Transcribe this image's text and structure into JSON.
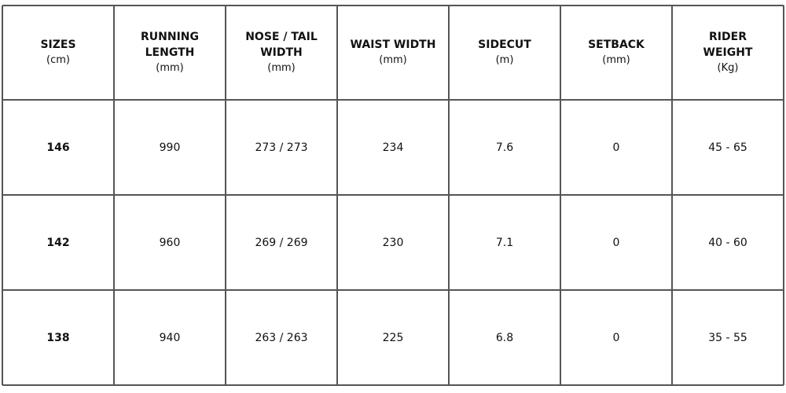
{
  "headers": [
    {
      "title": [
        "SIZES"
      ],
      "unit": "(cm)"
    },
    {
      "title": [
        "RUNNING",
        "LENGTH"
      ],
      "unit": "(mm)"
    },
    {
      "title": [
        "NOSE / TAIL",
        "WIDTH"
      ],
      "unit": "(mm)"
    },
    {
      "title": [
        "WAIST WIDTH"
      ],
      "unit": "(mm)"
    },
    {
      "title": [
        "SIDECUT"
      ],
      "unit": "(m)"
    },
    {
      "title": [
        "SETBACK"
      ],
      "unit": "(mm)"
    },
    {
      "title": [
        "RIDER",
        "WEIGHT"
      ],
      "unit": "(Kg)"
    }
  ],
  "rows": [
    [
      "146",
      "990",
      "273 / 273",
      "234",
      "7.6",
      "0",
      "45 - 65"
    ],
    [
      "142",
      "960",
      "269 / 269",
      "230",
      "7.1",
      "0",
      "40 - 60"
    ],
    [
      "138",
      "940",
      "263 / 263",
      "225",
      "6.8",
      "0",
      "35 - 55"
    ]
  ],
  "colors": {
    "border": "#555555",
    "text": "#111111"
  }
}
